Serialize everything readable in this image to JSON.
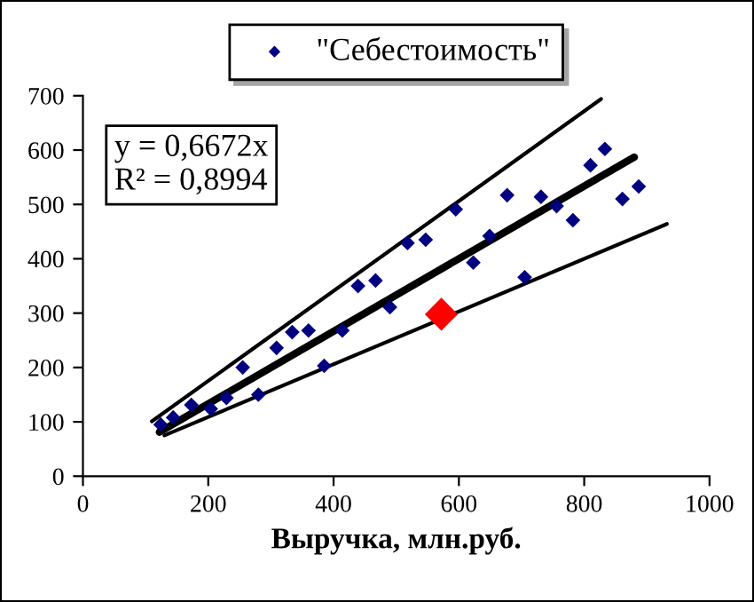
{
  "chart_data": {
    "type": "scatter",
    "xlabel": "Выручка, млн.руб.",
    "xlim": [
      0,
      1000
    ],
    "xticks": [
      0,
      200,
      400,
      600,
      800,
      1000
    ],
    "ylim": [
      0,
      700
    ],
    "yticks": [
      0,
      100,
      200,
      300,
      400,
      500,
      600,
      700
    ],
    "grid": false,
    "legend": "top",
    "marker": "diamond",
    "annotations": [
      "y = 0,6672x\nR² = 0,8994"
    ],
    "series": [
      {
        "name": "\"Себестоимость\"",
        "color": "#000080",
        "x": [
          124,
          144,
          173,
          204,
          229,
          255,
          280,
          309,
          334,
          360,
          385,
          414,
          439,
          467,
          490,
          518,
          547,
          595,
          623,
          649,
          677,
          705,
          731,
          756,
          782,
          810,
          833,
          861,
          887
        ],
        "values": [
          95,
          108,
          131,
          124,
          144,
          200,
          150,
          236,
          265,
          268,
          203,
          268,
          350,
          360,
          311,
          429,
          435,
          491,
          393,
          442,
          517,
          366,
          514,
          497,
          471,
          572,
          602,
          510,
          533
        ]
      },
      {
        "type": "line",
        "marker": "none",
        "color": "#000000",
        "x": [
          122,
          880
        ],
        "values": [
          81,
          587
        ]
      },
      {
        "type": "line",
        "marker": "none",
        "color": "#000000",
        "x": [
          110,
          827
        ],
        "values": [
          101,
          694
        ]
      },
      {
        "type": "line",
        "marker": "none",
        "color": "#000000",
        "x": [
          130,
          932
        ],
        "values": [
          75,
          464
        ]
      },
      {
        "color": "#ff0000",
        "x": [
          572
        ],
        "values": [
          298
        ]
      }
    ]
  }
}
